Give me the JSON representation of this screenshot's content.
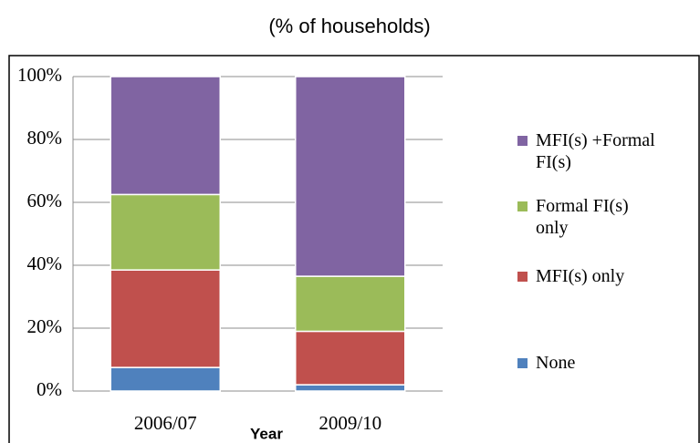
{
  "chart_data": {
    "type": "stacked_bar",
    "title": "(% of households)",
    "x_label": "Year",
    "categories": [
      "2006/07",
      "2009/10"
    ],
    "series": [
      {
        "name": "None",
        "color": "#4f81bd",
        "values": [
          7.5,
          2
        ]
      },
      {
        "name": "MFI(s) only",
        "color": "#c0504d",
        "values": [
          31,
          17
        ]
      },
      {
        "name": "Formal FI(s) only",
        "color": "#9bbb59",
        "values": [
          24,
          17.5
        ]
      },
      {
        "name": "MFI(s) +Formal FI(s)",
        "color": "#8064a2",
        "values": [
          37.5,
          63.5
        ]
      }
    ],
    "ylim": [
      0,
      100
    ],
    "yticks": [
      {
        "value": 0,
        "label": "0%"
      },
      {
        "value": 20,
        "label": "20%"
      },
      {
        "value": 40,
        "label": "40%"
      },
      {
        "value": 60,
        "label": "60%"
      },
      {
        "value": 80,
        "label": "80%"
      },
      {
        "value": 100,
        "label": "100%"
      }
    ],
    "grid": true,
    "legend": "right"
  }
}
